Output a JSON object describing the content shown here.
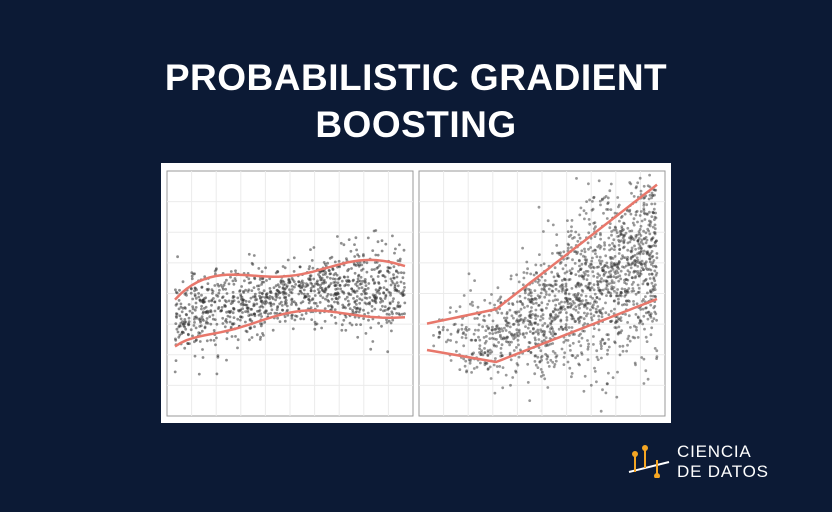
{
  "title": {
    "line1": "PROBABILISTIC GRADIENT",
    "line2": "BOOSTING"
  },
  "logo": {
    "line1": "CIENCIA",
    "line2": "DE DATOS",
    "icon": "scatter-regression-logo-icon",
    "accent_color": "#f5a623"
  },
  "figure": {
    "point_color": "#333333",
    "band_color": "#e8776b",
    "grid_color": "#ebebeb"
  }
}
